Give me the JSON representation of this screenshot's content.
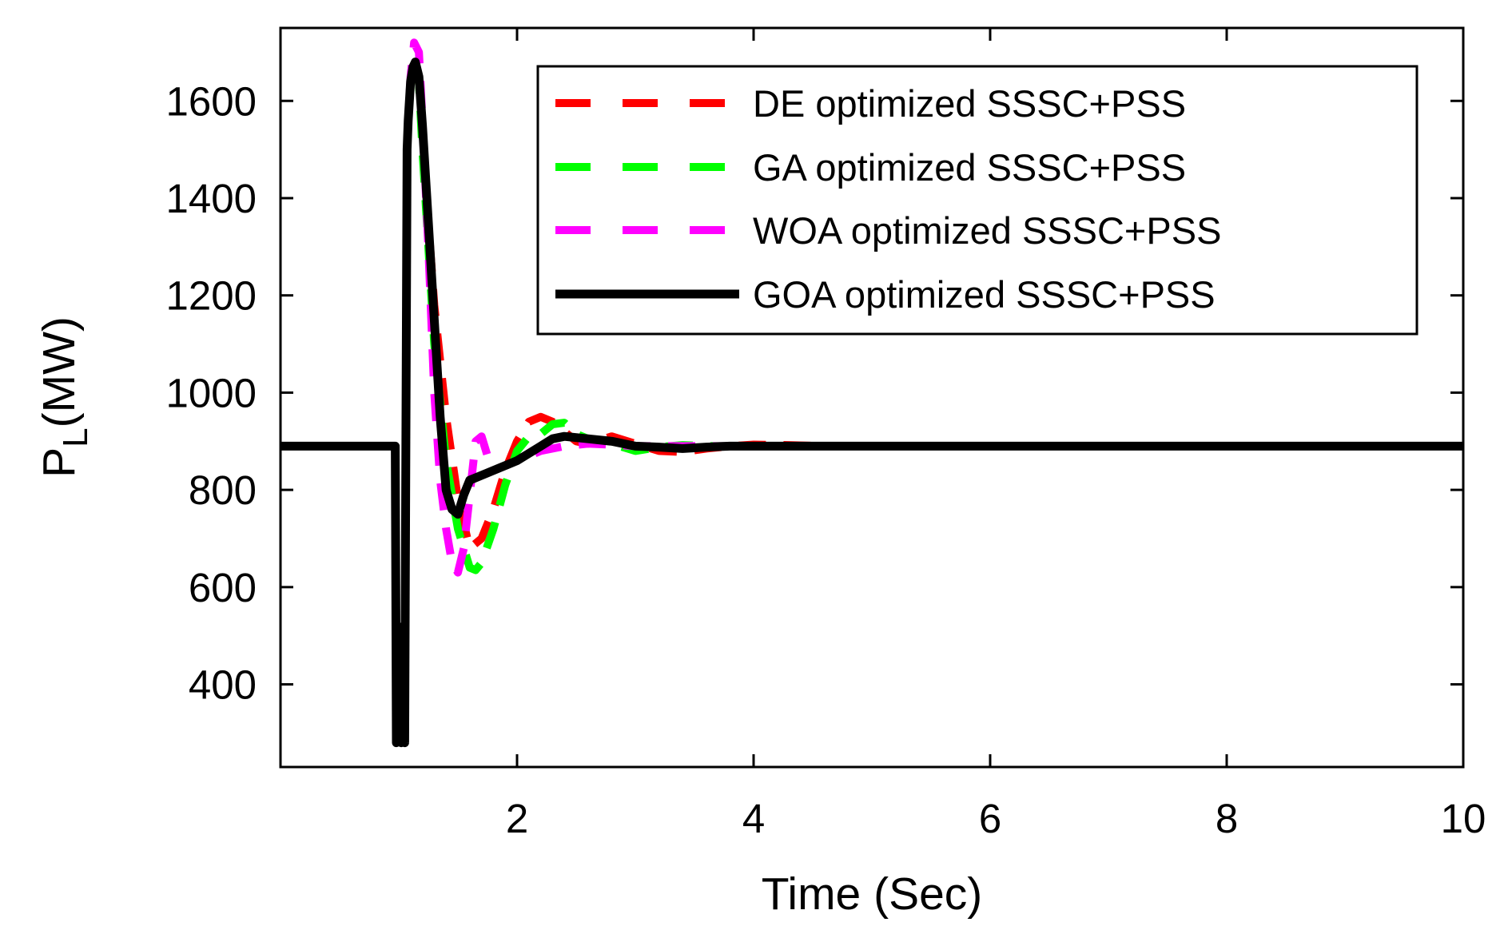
{
  "chart_data": {
    "type": "line",
    "title": "",
    "xlabel": "Time (Sec)",
    "ylabel": {
      "main": "P",
      "subscript": "L",
      "unit": "(MW)"
    },
    "xlim": [
      0,
      10
    ],
    "ylim": [
      230,
      1750
    ],
    "xticks": [
      2,
      4,
      6,
      8,
      10
    ],
    "yticks": [
      400,
      600,
      800,
      1000,
      1200,
      1400,
      1600
    ],
    "grid": false,
    "legend_position": "top-right",
    "series": [
      {
        "name": "DE optimized SSSC+PSS",
        "color": "#ff0000",
        "style": "dashed",
        "x": [
          0.0,
          0.9,
          0.97,
          0.98,
          1.02,
          1.05,
          1.07,
          1.08,
          1.1,
          1.13,
          1.17,
          1.2,
          1.25,
          1.3,
          1.4,
          1.5,
          1.6,
          1.7,
          1.8,
          1.9,
          2.0,
          2.1,
          2.2,
          2.3,
          2.4,
          2.5,
          2.6,
          2.8,
          3.0,
          3.2,
          3.4,
          3.6,
          3.8,
          4.0,
          4.3,
          4.6,
          5.0,
          10.0
        ],
        "y": [
          890,
          890,
          890,
          280,
          300,
          290,
          1500,
          1560,
          1640,
          1690,
          1640,
          1530,
          1350,
          1180,
          950,
          780,
          680,
          700,
          760,
          840,
          900,
          940,
          950,
          940,
          920,
          900,
          895,
          910,
          895,
          880,
          878,
          885,
          890,
          893,
          892,
          890,
          890,
          890
        ]
      },
      {
        "name": "GA optimized SSSC+PSS",
        "color": "#00ff00",
        "style": "dashed",
        "x": [
          0.0,
          0.9,
          0.97,
          0.98,
          1.02,
          1.05,
          1.07,
          1.08,
          1.1,
          1.13,
          1.17,
          1.2,
          1.25,
          1.3,
          1.4,
          1.5,
          1.6,
          1.65,
          1.7,
          1.8,
          1.9,
          2.0,
          2.1,
          2.2,
          2.3,
          2.4,
          2.5,
          2.6,
          2.8,
          3.0,
          3.2,
          3.4,
          3.6,
          3.8,
          4.0,
          4.3,
          4.6,
          5.0,
          10.0
        ],
        "y": [
          890,
          890,
          890,
          280,
          300,
          290,
          1500,
          1560,
          1640,
          1690,
          1640,
          1500,
          1300,
          1100,
          860,
          720,
          640,
          635,
          650,
          720,
          810,
          880,
          910,
          915,
          935,
          938,
          915,
          905,
          895,
          880,
          888,
          892,
          890,
          890,
          890,
          890,
          890,
          890,
          890
        ]
      },
      {
        "name": "WOA optimized SSSC+PSS",
        "color": "#ff00ff",
        "style": "dashed",
        "x": [
          0.0,
          0.9,
          0.97,
          0.98,
          1.02,
          1.05,
          1.07,
          1.08,
          1.1,
          1.13,
          1.17,
          1.2,
          1.25,
          1.3,
          1.35,
          1.4,
          1.45,
          1.5,
          1.55,
          1.6,
          1.65,
          1.7,
          1.75,
          1.8,
          1.9,
          2.0,
          2.1,
          2.2,
          2.4,
          2.6,
          2.8,
          3.0,
          3.5,
          4.0,
          5.0,
          10.0
        ],
        "y": [
          890,
          890,
          890,
          280,
          300,
          290,
          1500,
          1560,
          1650,
          1720,
          1700,
          1560,
          1300,
          1000,
          820,
          720,
          650,
          630,
          680,
          790,
          900,
          910,
          870,
          840,
          850,
          860,
          870,
          880,
          890,
          895,
          893,
          890,
          890,
          890,
          890,
          890
        ]
      },
      {
        "name": "GOA optimized SSSC+PSS",
        "color": "#000000",
        "style": "solid",
        "x": [
          0.0,
          0.9,
          0.97,
          0.98,
          1.0,
          1.02,
          1.04,
          1.05,
          1.06,
          1.07,
          1.08,
          1.09,
          1.1,
          1.12,
          1.14,
          1.17,
          1.2,
          1.25,
          1.3,
          1.35,
          1.4,
          1.45,
          1.5,
          1.55,
          1.6,
          1.7,
          1.8,
          1.9,
          2.0,
          2.1,
          2.2,
          2.3,
          2.4,
          2.6,
          2.8,
          3.0,
          3.2,
          3.4,
          3.6,
          3.8,
          4.0,
          10.0
        ],
        "y": [
          890,
          890,
          890,
          280,
          300,
          280,
          520,
          280,
          900,
          1500,
          1560,
          1600,
          1640,
          1670,
          1680,
          1650,
          1550,
          1350,
          1150,
          950,
          800,
          760,
          750,
          790,
          820,
          830,
          840,
          850,
          860,
          875,
          890,
          905,
          910,
          905,
          900,
          890,
          888,
          885,
          888,
          890,
          890,
          890
        ]
      }
    ]
  }
}
